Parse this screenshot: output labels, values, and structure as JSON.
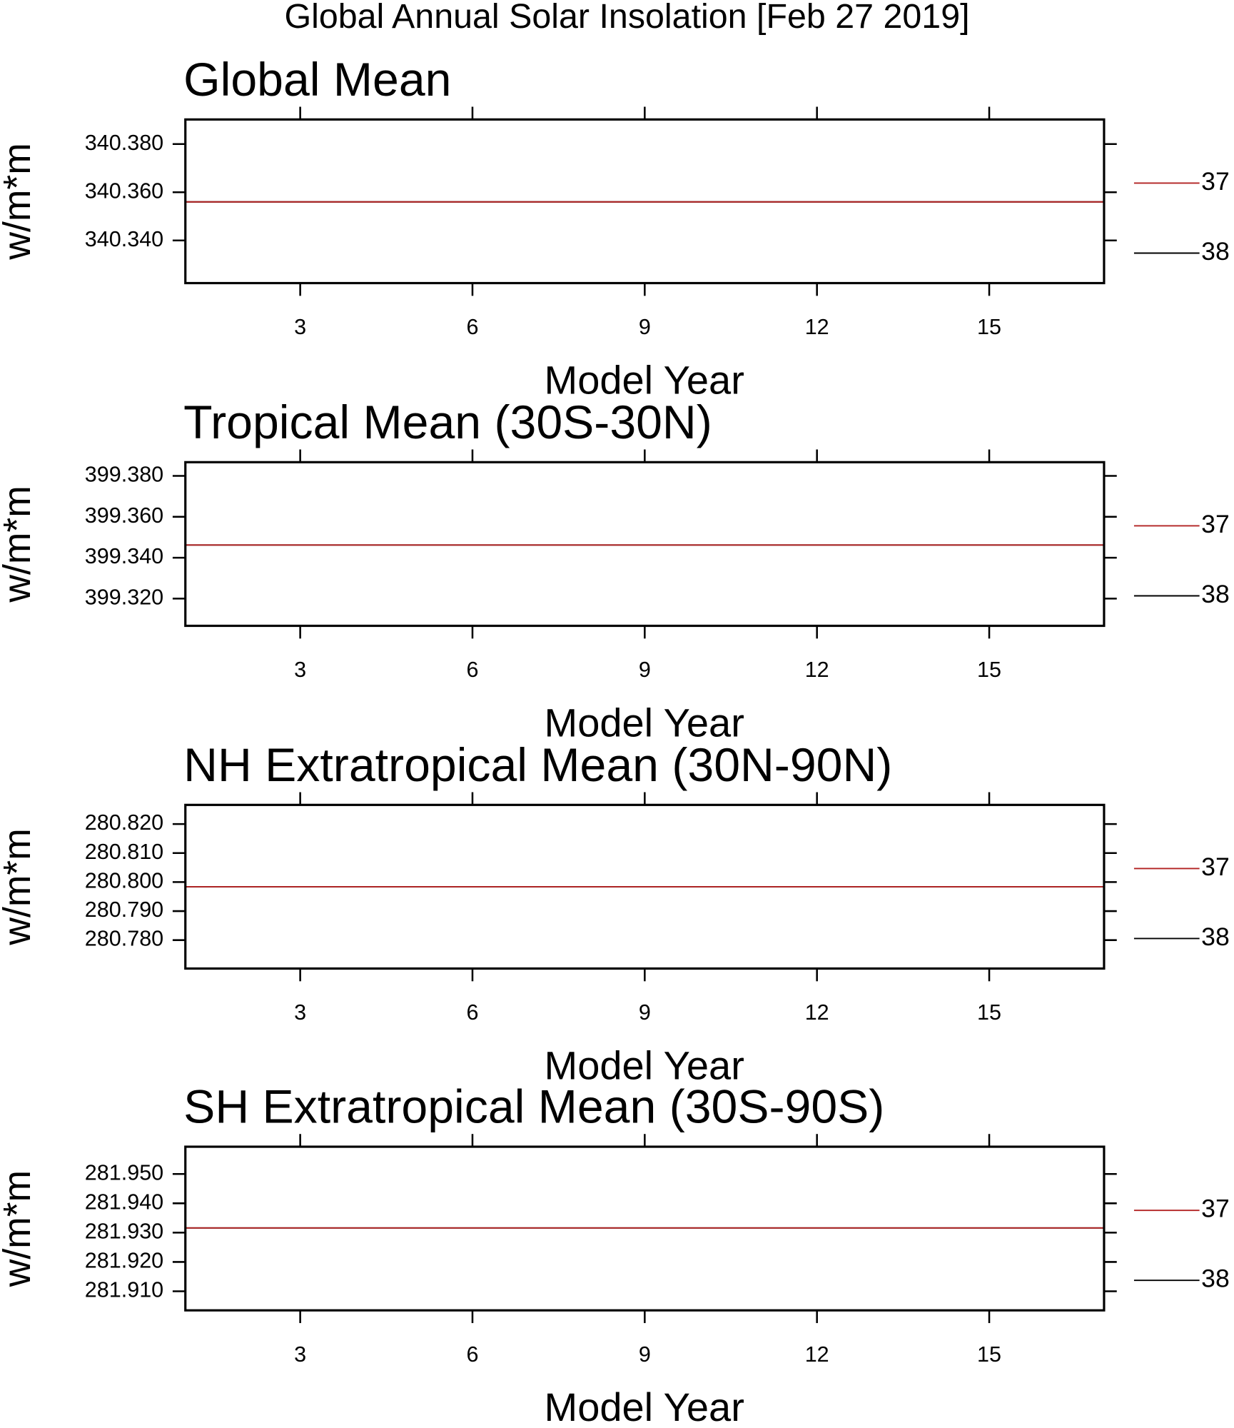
{
  "title": "Global Annual Solar Insolation [Feb 27 2019]",
  "chart_data": [
    {
      "type": "line",
      "title": "Global Mean",
      "x_label": "Model Year",
      "y_label": "w/m*m",
      "x": [
        1,
        2,
        3,
        4,
        5,
        6,
        7,
        8,
        9,
        10,
        11,
        12,
        13,
        14,
        15,
        16,
        17
      ],
      "series": [
        {
          "name": "38",
          "color": "#000000",
          "values": [
            340.356,
            340.356,
            340.356,
            340.356,
            340.356,
            340.356,
            340.356,
            340.356,
            340.356,
            340.356,
            340.356,
            340.356,
            340.356,
            340.356,
            340.356,
            340.356,
            340.356
          ]
        },
        {
          "name": "37",
          "color": "#b22222",
          "values": [
            340.356,
            340.356,
            340.356,
            340.356,
            340.356,
            340.356,
            340.356,
            340.356,
            340.356,
            340.356,
            340.356,
            340.356,
            340.356,
            340.356,
            340.356,
            340.356,
            340.356
          ]
        }
      ],
      "xlim": [
        1,
        17
      ],
      "xticks": [
        3,
        6,
        9,
        12,
        15
      ],
      "ylim": [
        340.3223,
        340.3902
      ],
      "yticks": [
        {
          "value": 340.34,
          "label": "340.340"
        },
        {
          "value": 340.36,
          "label": "340.360"
        },
        {
          "value": 340.38,
          "label": "340.380"
        }
      ]
    },
    {
      "type": "line",
      "title": "Tropical Mean (30S-30N)",
      "x_label": "Model Year",
      "y_label": "w/m*m",
      "x": [
        1,
        2,
        3,
        4,
        5,
        6,
        7,
        8,
        9,
        10,
        11,
        12,
        13,
        14,
        15,
        16,
        17
      ],
      "series": [
        {
          "name": "38",
          "color": "#000000",
          "values": [
            399.3462,
            399.3462,
            399.3462,
            399.3462,
            399.3462,
            399.3462,
            399.3462,
            399.3462,
            399.3462,
            399.3462,
            399.3462,
            399.3462,
            399.3462,
            399.3462,
            399.3462,
            399.3462,
            399.3462
          ]
        },
        {
          "name": "37",
          "color": "#b22222",
          "values": [
            399.3462,
            399.3462,
            399.3462,
            399.3462,
            399.3462,
            399.3462,
            399.3462,
            399.3462,
            399.3462,
            399.3462,
            399.3462,
            399.3462,
            399.3462,
            399.3462,
            399.3462,
            399.3462,
            399.3462
          ]
        }
      ],
      "xlim": [
        1,
        17
      ],
      "xticks": [
        3,
        6,
        9,
        12,
        15
      ],
      "ylim": [
        399.3067,
        399.3867
      ],
      "yticks": [
        {
          "value": 399.32,
          "label": "399.320"
        },
        {
          "value": 399.34,
          "label": "399.340"
        },
        {
          "value": 399.36,
          "label": "399.360"
        },
        {
          "value": 399.38,
          "label": "399.380"
        }
      ]
    },
    {
      "type": "line",
      "title": "NH Extratropical Mean (30N-90N)",
      "x_label": "Model Year",
      "y_label": "w/m*m",
      "x": [
        1,
        2,
        3,
        4,
        5,
        6,
        7,
        8,
        9,
        10,
        11,
        12,
        13,
        14,
        15,
        16,
        17
      ],
      "series": [
        {
          "name": "38",
          "color": "#000000",
          "values": [
            280.7984,
            280.7984,
            280.7984,
            280.7984,
            280.7984,
            280.7984,
            280.7984,
            280.7984,
            280.7984,
            280.7984,
            280.7984,
            280.7984,
            280.7984,
            280.7984,
            280.7984,
            280.7984,
            280.7984
          ]
        },
        {
          "name": "37",
          "color": "#b22222",
          "values": [
            280.7984,
            280.7984,
            280.7984,
            280.7984,
            280.7984,
            280.7984,
            280.7984,
            280.7984,
            280.7984,
            280.7984,
            280.7984,
            280.7984,
            280.7984,
            280.7984,
            280.7984,
            280.7984,
            280.7984
          ]
        }
      ],
      "xlim": [
        1,
        17
      ],
      "xticks": [
        3,
        6,
        9,
        12,
        15
      ],
      "ylim": [
        280.7702,
        280.8266
      ],
      "yticks": [
        {
          "value": 280.78,
          "label": "280.780"
        },
        {
          "value": 280.79,
          "label": "280.790"
        },
        {
          "value": 280.8,
          "label": "280.800"
        },
        {
          "value": 280.81,
          "label": "280.810"
        },
        {
          "value": 280.82,
          "label": "280.820"
        }
      ]
    },
    {
      "type": "line",
      "title": "SH Extratropical Mean (30S-90S)",
      "x_label": "Model Year",
      "y_label": "w/m*m",
      "x": [
        1,
        2,
        3,
        4,
        5,
        6,
        7,
        8,
        9,
        10,
        11,
        12,
        13,
        14,
        15,
        16,
        17
      ],
      "series": [
        {
          "name": "38",
          "color": "#000000",
          "values": [
            281.9316,
            281.9316,
            281.9316,
            281.9316,
            281.9316,
            281.9316,
            281.9316,
            281.9316,
            281.9316,
            281.9316,
            281.9316,
            281.9316,
            281.9316,
            281.9316,
            281.9316,
            281.9316,
            281.9316
          ]
        },
        {
          "name": "37",
          "color": "#b22222",
          "values": [
            281.9316,
            281.9316,
            281.9316,
            281.9316,
            281.9316,
            281.9316,
            281.9316,
            281.9316,
            281.9316,
            281.9316,
            281.9316,
            281.9316,
            281.9316,
            281.9316,
            281.9316,
            281.9316,
            281.9316
          ]
        }
      ],
      "xlim": [
        1,
        17
      ],
      "xticks": [
        3,
        6,
        9,
        12,
        15
      ],
      "ylim": [
        281.9035,
        281.9593
      ],
      "yticks": [
        {
          "value": 281.91,
          "label": "281.910"
        },
        {
          "value": 281.92,
          "label": "281.920"
        },
        {
          "value": 281.93,
          "label": "281.930"
        },
        {
          "value": 281.94,
          "label": "281.940"
        },
        {
          "value": 281.95,
          "label": "281.950"
        }
      ]
    }
  ]
}
